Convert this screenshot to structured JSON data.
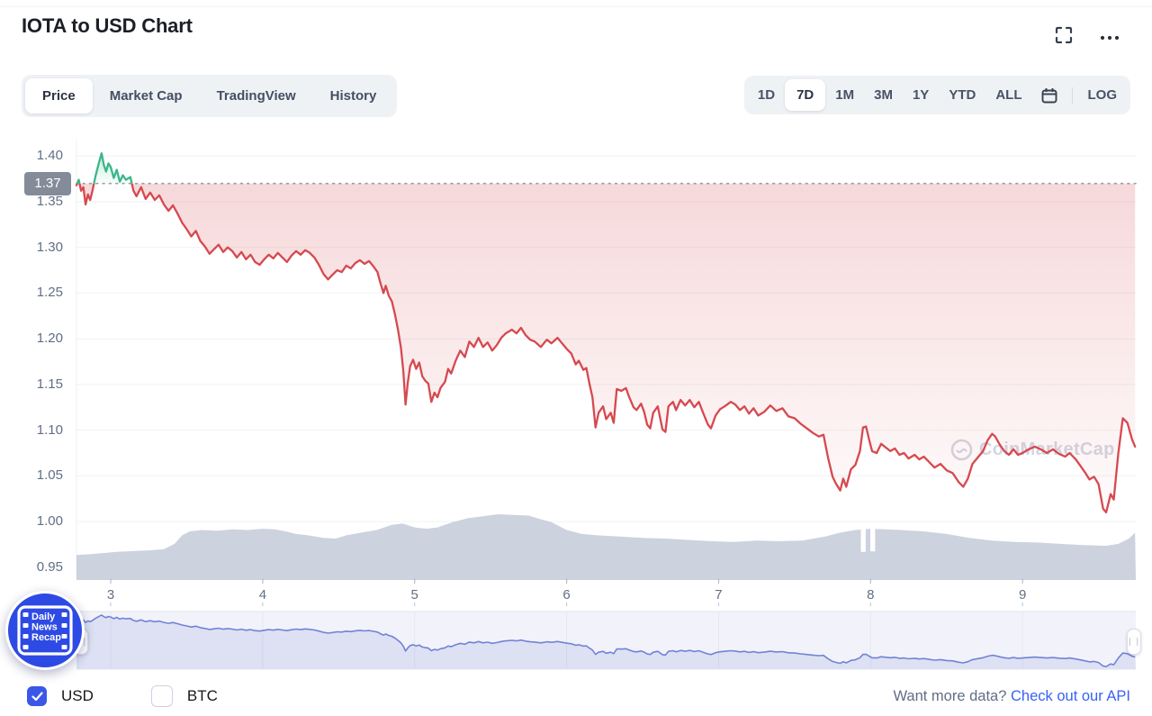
{
  "header": {
    "title": "IOTA to USD Chart"
  },
  "tabs": {
    "items": [
      "Price",
      "Market Cap",
      "TradingView",
      "History"
    ],
    "selected": "Price"
  },
  "range_toolbar": {
    "items": [
      "1D",
      "7D",
      "1M",
      "3M",
      "1Y",
      "YTD",
      "ALL"
    ],
    "selected": "7D",
    "log_label": "LOG"
  },
  "watermark": "CoinMarketCap",
  "news_badge": {
    "lines": [
      "Daily",
      "News",
      "Recap"
    ]
  },
  "footer": {
    "currencies": [
      {
        "label": "USD",
        "checked": true
      },
      {
        "label": "BTC",
        "checked": false
      }
    ],
    "api_prompt": "Want more data?",
    "api_link": "Check out our API"
  },
  "chart_data": {
    "type": "line",
    "title": "IOTA to USD, 7 day price chart",
    "x_unit": "day of month",
    "x_ticks": [
      3,
      4,
      5,
      6,
      7,
      8,
      9
    ],
    "xlim": [
      2.775,
      9.745
    ],
    "y_ticks": [
      1.4,
      1.35,
      1.3,
      1.25,
      1.2,
      1.15,
      1.1,
      1.05,
      1.0,
      0.95
    ],
    "ylim": [
      0.935,
      1.418
    ],
    "open_price": 1.37,
    "open_price_label": "1.37",
    "legend": "off",
    "grid": "horizontal",
    "colors": {
      "up": "#3ab78a",
      "down": "#d6494f",
      "volume": "#ccd2de",
      "nav_line": "#7183d6",
      "nav_fill": "rgba(113,131,214,0.16)",
      "nav_bg": "#f2f3fa",
      "accent": "#3861fb"
    },
    "price_series": [
      [
        2.775,
        1.368
      ],
      [
        2.79,
        1.374
      ],
      [
        2.805,
        1.362
      ],
      [
        2.82,
        1.366
      ],
      [
        2.835,
        1.347
      ],
      [
        2.85,
        1.358
      ],
      [
        2.865,
        1.352
      ],
      [
        2.88,
        1.362
      ],
      [
        2.9,
        1.378
      ],
      [
        2.92,
        1.391
      ],
      [
        2.94,
        1.403
      ],
      [
        2.955,
        1.39
      ],
      [
        2.97,
        1.383
      ],
      [
        2.985,
        1.392
      ],
      [
        3.0,
        1.388
      ],
      [
        3.02,
        1.376
      ],
      [
        3.04,
        1.385
      ],
      [
        3.06,
        1.372
      ],
      [
        3.08,
        1.379
      ],
      [
        3.1,
        1.374
      ],
      [
        3.13,
        1.377
      ],
      [
        3.15,
        1.362
      ],
      [
        3.17,
        1.356
      ],
      [
        3.2,
        1.366
      ],
      [
        3.23,
        1.353
      ],
      [
        3.26,
        1.36
      ],
      [
        3.29,
        1.352
      ],
      [
        3.32,
        1.357
      ],
      [
        3.35,
        1.347
      ],
      [
        3.38,
        1.34
      ],
      [
        3.41,
        1.346
      ],
      [
        3.44,
        1.337
      ],
      [
        3.47,
        1.327
      ],
      [
        3.5,
        1.32
      ],
      [
        3.53,
        1.312
      ],
      [
        3.56,
        1.318
      ],
      [
        3.59,
        1.307
      ],
      [
        3.62,
        1.301
      ],
      [
        3.65,
        1.293
      ],
      [
        3.68,
        1.298
      ],
      [
        3.71,
        1.303
      ],
      [
        3.74,
        1.295
      ],
      [
        3.77,
        1.3
      ],
      [
        3.8,
        1.296
      ],
      [
        3.83,
        1.289
      ],
      [
        3.86,
        1.295
      ],
      [
        3.89,
        1.287
      ],
      [
        3.92,
        1.292
      ],
      [
        3.95,
        1.284
      ],
      [
        3.98,
        1.281
      ],
      [
        4.01,
        1.287
      ],
      [
        4.04,
        1.292
      ],
      [
        4.07,
        1.288
      ],
      [
        4.1,
        1.294
      ],
      [
        4.13,
        1.289
      ],
      [
        4.16,
        1.284
      ],
      [
        4.19,
        1.291
      ],
      [
        4.22,
        1.296
      ],
      [
        4.25,
        1.292
      ],
      [
        4.28,
        1.297
      ],
      [
        4.31,
        1.294
      ],
      [
        4.34,
        1.289
      ],
      [
        4.37,
        1.281
      ],
      [
        4.4,
        1.271
      ],
      [
        4.43,
        1.265
      ],
      [
        4.46,
        1.27
      ],
      [
        4.49,
        1.275
      ],
      [
        4.52,
        1.273
      ],
      [
        4.55,
        1.28
      ],
      [
        4.58,
        1.277
      ],
      [
        4.61,
        1.283
      ],
      [
        4.64,
        1.286
      ],
      [
        4.67,
        1.282
      ],
      [
        4.7,
        1.285
      ],
      [
        4.73,
        1.279
      ],
      [
        4.755,
        1.273
      ],
      [
        4.775,
        1.261
      ],
      [
        4.795,
        1.25
      ],
      [
        4.81,
        1.258
      ],
      [
        4.83,
        1.247
      ],
      [
        4.85,
        1.241
      ],
      [
        4.87,
        1.227
      ],
      [
        4.89,
        1.21
      ],
      [
        4.91,
        1.19
      ],
      [
        4.925,
        1.165
      ],
      [
        4.94,
        1.128
      ],
      [
        4.955,
        1.152
      ],
      [
        4.97,
        1.17
      ],
      [
        4.99,
        1.177
      ],
      [
        5.01,
        1.167
      ],
      [
        5.03,
        1.174
      ],
      [
        5.05,
        1.159
      ],
      [
        5.07,
        1.154
      ],
      [
        5.09,
        1.151
      ],
      [
        5.11,
        1.131
      ],
      [
        5.13,
        1.141
      ],
      [
        5.15,
        1.136
      ],
      [
        5.17,
        1.146
      ],
      [
        5.2,
        1.153
      ],
      [
        5.22,
        1.167
      ],
      [
        5.24,
        1.162
      ],
      [
        5.27,
        1.176
      ],
      [
        5.3,
        1.187
      ],
      [
        5.33,
        1.18
      ],
      [
        5.36,
        1.197
      ],
      [
        5.39,
        1.191
      ],
      [
        5.42,
        1.201
      ],
      [
        5.45,
        1.191
      ],
      [
        5.48,
        1.196
      ],
      [
        5.51,
        1.187
      ],
      [
        5.54,
        1.193
      ],
      [
        5.57,
        1.201
      ],
      [
        5.6,
        1.206
      ],
      [
        5.64,
        1.21
      ],
      [
        5.67,
        1.206
      ],
      [
        5.7,
        1.212
      ],
      [
        5.73,
        1.204
      ],
      [
        5.76,
        1.199
      ],
      [
        5.79,
        1.197
      ],
      [
        5.83,
        1.191
      ],
      [
        5.87,
        1.199
      ],
      [
        5.9,
        1.195
      ],
      [
        5.94,
        1.201
      ],
      [
        5.97,
        1.195
      ],
      [
        6.0,
        1.189
      ],
      [
        6.03,
        1.184
      ],
      [
        6.06,
        1.172
      ],
      [
        6.08,
        1.176
      ],
      [
        6.11,
        1.166
      ],
      [
        6.13,
        1.168
      ],
      [
        6.15,
        1.151
      ],
      [
        6.17,
        1.136
      ],
      [
        6.19,
        1.103
      ],
      [
        6.21,
        1.119
      ],
      [
        6.24,
        1.126
      ],
      [
        6.26,
        1.112
      ],
      [
        6.29,
        1.119
      ],
      [
        6.31,
        1.108
      ],
      [
        6.33,
        1.145
      ],
      [
        6.36,
        1.143
      ],
      [
        6.39,
        1.146
      ],
      [
        6.41,
        1.137
      ],
      [
        6.44,
        1.125
      ],
      [
        6.46,
        1.122
      ],
      [
        6.49,
        1.129
      ],
      [
        6.51,
        1.12
      ],
      [
        6.53,
        1.106
      ],
      [
        6.55,
        1.102
      ],
      [
        6.57,
        1.119
      ],
      [
        6.6,
        1.126
      ],
      [
        6.63,
        1.101
      ],
      [
        6.65,
        1.098
      ],
      [
        6.67,
        1.126
      ],
      [
        6.7,
        1.131
      ],
      [
        6.72,
        1.122
      ],
      [
        6.75,
        1.133
      ],
      [
        6.78,
        1.127
      ],
      [
        6.81,
        1.133
      ],
      [
        6.84,
        1.125
      ],
      [
        6.87,
        1.131
      ],
      [
        6.9,
        1.118
      ],
      [
        6.93,
        1.106
      ],
      [
        6.95,
        1.102
      ],
      [
        6.98,
        1.116
      ],
      [
        7.01,
        1.123
      ],
      [
        7.04,
        1.126
      ],
      [
        7.08,
        1.131
      ],
      [
        7.11,
        1.128
      ],
      [
        7.14,
        1.122
      ],
      [
        7.17,
        1.126
      ],
      [
        7.2,
        1.118
      ],
      [
        7.23,
        1.124
      ],
      [
        7.26,
        1.116
      ],
      [
        7.3,
        1.12
      ],
      [
        7.34,
        1.127
      ],
      [
        7.38,
        1.121
      ],
      [
        7.42,
        1.124
      ],
      [
        7.46,
        1.115
      ],
      [
        7.5,
        1.113
      ],
      [
        7.54,
        1.107
      ],
      [
        7.58,
        1.102
      ],
      [
        7.62,
        1.097
      ],
      [
        7.66,
        1.093
      ],
      [
        7.69,
        1.095
      ],
      [
        7.72,
        1.07
      ],
      [
        7.75,
        1.049
      ],
      [
        7.77,
        1.042
      ],
      [
        7.8,
        1.034
      ],
      [
        7.82,
        1.047
      ],
      [
        7.84,
        1.038
      ],
      [
        7.87,
        1.057
      ],
      [
        7.9,
        1.062
      ],
      [
        7.93,
        1.077
      ],
      [
        7.95,
        1.103
      ],
      [
        7.97,
        1.104
      ],
      [
        7.99,
        1.09
      ],
      [
        8.01,
        1.077
      ],
      [
        8.04,
        1.075
      ],
      [
        8.07,
        1.085
      ],
      [
        8.1,
        1.081
      ],
      [
        8.13,
        1.077
      ],
      [
        8.16,
        1.08
      ],
      [
        8.19,
        1.073
      ],
      [
        8.22,
        1.075
      ],
      [
        8.25,
        1.069
      ],
      [
        8.29,
        1.073
      ],
      [
        8.32,
        1.068
      ],
      [
        8.35,
        1.071
      ],
      [
        8.38,
        1.066
      ],
      [
        8.42,
        1.059
      ],
      [
        8.46,
        1.063
      ],
      [
        8.5,
        1.056
      ],
      [
        8.54,
        1.053
      ],
      [
        8.58,
        1.043
      ],
      [
        8.61,
        1.038
      ],
      [
        8.64,
        1.047
      ],
      [
        8.67,
        1.063
      ],
      [
        8.71,
        1.071
      ],
      [
        8.74,
        1.077
      ],
      [
        8.77,
        1.089
      ],
      [
        8.8,
        1.096
      ],
      [
        8.82,
        1.093
      ],
      [
        8.85,
        1.084
      ],
      [
        8.88,
        1.077
      ],
      [
        8.91,
        1.073
      ],
      [
        8.94,
        1.079
      ],
      [
        8.97,
        1.073
      ],
      [
        9.0,
        1.075
      ],
      [
        9.04,
        1.079
      ],
      [
        9.08,
        1.082
      ],
      [
        9.12,
        1.079
      ],
      [
        9.16,
        1.075
      ],
      [
        9.2,
        1.079
      ],
      [
        9.24,
        1.074
      ],
      [
        9.28,
        1.071
      ],
      [
        9.31,
        1.075
      ],
      [
        9.35,
        1.068
      ],
      [
        9.38,
        1.061
      ],
      [
        9.41,
        1.054
      ],
      [
        9.44,
        1.046
      ],
      [
        9.47,
        1.049
      ],
      [
        9.5,
        1.041
      ],
      [
        9.53,
        1.014
      ],
      [
        9.55,
        1.01
      ],
      [
        9.58,
        1.03
      ],
      [
        9.6,
        1.024
      ],
      [
        9.63,
        1.075
      ],
      [
        9.66,
        1.113
      ],
      [
        9.69,
        1.108
      ],
      [
        9.72,
        1.09
      ],
      [
        9.74,
        1.082
      ]
    ],
    "volume_series_relative": [
      [
        2.775,
        38
      ],
      [
        2.85,
        39
      ],
      [
        2.95,
        41
      ],
      [
        3.05,
        43
      ],
      [
        3.15,
        44
      ],
      [
        3.25,
        45
      ],
      [
        3.35,
        47
      ],
      [
        3.42,
        55
      ],
      [
        3.47,
        68
      ],
      [
        3.52,
        74
      ],
      [
        3.6,
        76
      ],
      [
        3.7,
        75
      ],
      [
        3.8,
        77
      ],
      [
        3.9,
        76
      ],
      [
        4.0,
        78
      ],
      [
        4.08,
        77
      ],
      [
        4.15,
        74
      ],
      [
        4.22,
        70
      ],
      [
        4.3,
        68
      ],
      [
        4.4,
        64
      ],
      [
        4.48,
        63
      ],
      [
        4.55,
        68
      ],
      [
        4.65,
        72
      ],
      [
        4.75,
        76
      ],
      [
        4.85,
        84
      ],
      [
        4.92,
        86
      ],
      [
        5.0,
        80
      ],
      [
        5.08,
        78
      ],
      [
        5.15,
        80
      ],
      [
        5.25,
        88
      ],
      [
        5.35,
        94
      ],
      [
        5.45,
        97
      ],
      [
        5.55,
        100
      ],
      [
        5.65,
        99
      ],
      [
        5.75,
        98
      ],
      [
        5.82,
        93
      ],
      [
        5.9,
        88
      ],
      [
        6.0,
        76
      ],
      [
        6.1,
        70
      ],
      [
        6.2,
        68
      ],
      [
        6.35,
        66
      ],
      [
        6.5,
        64
      ],
      [
        6.65,
        63
      ],
      [
        6.8,
        61
      ],
      [
        6.95,
        59
      ],
      [
        7.1,
        58
      ],
      [
        7.25,
        60
      ],
      [
        7.4,
        59
      ],
      [
        7.55,
        60
      ],
      [
        7.7,
        66
      ],
      [
        7.8,
        72
      ],
      [
        7.9,
        76
      ],
      [
        8.0,
        78
      ],
      [
        8.1,
        77
      ],
      [
        8.2,
        76
      ],
      [
        8.35,
        74
      ],
      [
        8.5,
        70
      ],
      [
        8.65,
        64
      ],
      [
        8.8,
        60
      ],
      [
        8.95,
        58
      ],
      [
        9.1,
        57
      ],
      [
        9.25,
        55
      ],
      [
        9.4,
        53
      ],
      [
        9.55,
        52
      ],
      [
        9.63,
        55
      ],
      [
        9.7,
        63
      ],
      [
        9.74,
        72
      ]
    ],
    "volume_gaps": [
      [
        7.936,
        7.968
      ],
      [
        7.998,
        8.03
      ]
    ],
    "navigator": {
      "ylim": [
        0.99,
        1.43
      ],
      "x_ticks": [
        3,
        4,
        5,
        6,
        7,
        8,
        9
      ]
    }
  }
}
